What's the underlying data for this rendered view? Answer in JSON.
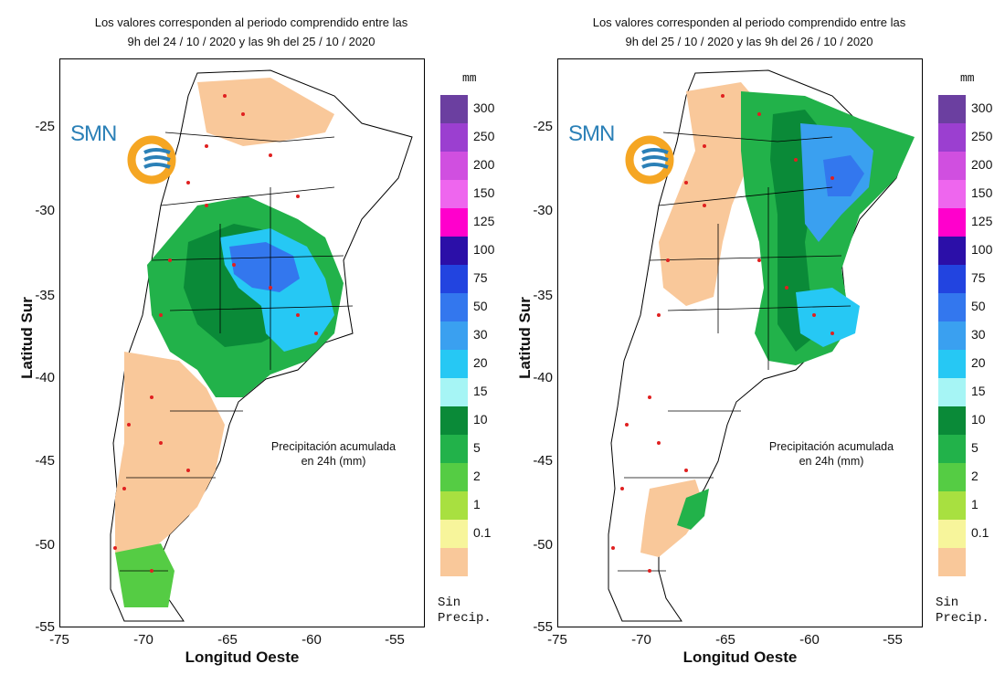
{
  "maps": [
    {
      "title_line1": "Los valores corresponden al periodo comprendido entre las",
      "title_line2": "9h del 24 / 10 / 2020  y las 9h del 25 / 10 / 2020",
      "caption_line1": "Precipitación acumulada",
      "caption_line2": "en 24h (mm)",
      "rain_zones": [
        {
          "name": "light-zone-north",
          "class": "0.1"
        },
        {
          "name": "light-zone-patagonia",
          "class": "0.1"
        },
        {
          "name": "moderate-zone-center",
          "class": "10"
        },
        {
          "name": "heavy-zone-pampas",
          "class": "30"
        },
        {
          "name": "heavy-core-cordoba",
          "class": "75"
        }
      ]
    },
    {
      "title_line1": "Los valores corresponden al periodo comprendido entre las",
      "title_line2": "9h del 25 / 10 / 2020  y las 9h del 26 / 10 / 2020",
      "caption_line1": "Precipitación acumulada",
      "caption_line2": "en 24h (mm)",
      "rain_zones": [
        {
          "name": "light-zone-west",
          "class": "0.1"
        },
        {
          "name": "moderate-zone-littoral",
          "class": "10"
        },
        {
          "name": "heavy-zone-northeast",
          "class": "50"
        },
        {
          "name": "heavy-core-corrientes",
          "class": "75"
        },
        {
          "name": "heavy-zone-buenos-aires",
          "class": "30"
        },
        {
          "name": "light-zone-chubut",
          "class": "0.1"
        }
      ]
    }
  ],
  "logo_text": "SMN",
  "axes": {
    "xlabel": "Longitud Oeste",
    "ylabel": "Latitud Sur",
    "x_ticks": [
      "-75",
      "-70",
      "-65",
      "-60",
      "-55"
    ],
    "y_ticks": [
      "-25",
      "-30",
      "-35",
      "-40",
      "-45",
      "-50",
      "-55"
    ],
    "lon_range": [
      -75,
      -53
    ],
    "lat_range": [
      -21,
      -55.3
    ]
  },
  "legend": {
    "unit": "mm",
    "classes": [
      {
        "label": "300",
        "color": "#6b3fa0"
      },
      {
        "label": "250",
        "color": "#9b3fd0"
      },
      {
        "label": "200",
        "color": "#d04fe0"
      },
      {
        "label": "150",
        "color": "#ee66ee"
      },
      {
        "label": "125",
        "color": "#ff00cc"
      },
      {
        "label": "100",
        "color": "#2b0fa8"
      },
      {
        "label": "75",
        "color": "#2244e0"
      },
      {
        "label": "50",
        "color": "#3377ee"
      },
      {
        "label": "30",
        "color": "#3aa0f0"
      },
      {
        "label": "20",
        "color": "#26c8f4"
      },
      {
        "label": "15",
        "color": "#a6f5f5"
      },
      {
        "label": "10",
        "color": "#0a8a38"
      },
      {
        "label": "5",
        "color": "#22b24a"
      },
      {
        "label": "2",
        "color": "#55cc44"
      },
      {
        "label": "1",
        "color": "#a8e040"
      },
      {
        "label": "0.1",
        "color": "#f7f59b"
      },
      {
        "label": "",
        "color": "#f9c89a"
      }
    ],
    "nodata_line1": "Sin",
    "nodata_line2": "Precip."
  }
}
